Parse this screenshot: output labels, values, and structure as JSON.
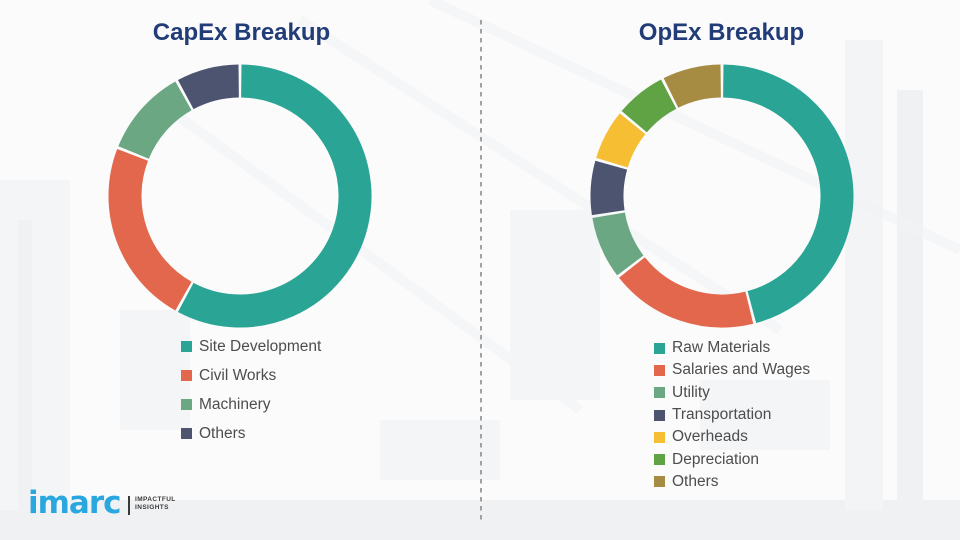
{
  "chart_data": [
    {
      "type": "donut",
      "title": "CapEx Breakup",
      "labels": [
        "Site Development",
        "Civil Works",
        "Machinery",
        "Others"
      ],
      "values": [
        58,
        23,
        11,
        8
      ],
      "colors": [
        "#2AA494",
        "#E2674C",
        "#6BA783",
        "#4D5470"
      ],
      "legend_position": "below"
    },
    {
      "type": "donut",
      "title": "OpEx Breakup",
      "labels": [
        "Raw Materials",
        "Salaries and Wages",
        "Utility",
        "Transportation",
        "Overheads",
        "Depreciation",
        "Others"
      ],
      "values": [
        46,
        18.5,
        8,
        7,
        6.5,
        6.5,
        7.5
      ],
      "colors": [
        "#2AA494",
        "#E2674C",
        "#6BA783",
        "#4D5470",
        "#F5BE33",
        "#5FA344",
        "#A68B42"
      ],
      "legend_position": "below"
    }
  ],
  "style": {
    "title_color": "#223C78",
    "legend_text_color": "#4D4D4D",
    "divider_color": "#8c8c8c",
    "background_color": "#fbfbfc"
  },
  "logo": {
    "brand": "imarc",
    "tagline_line1": "IMPACTFUL",
    "tagline_line2": "INSIGHTS",
    "brand_color": "#2AA7DF",
    "text_color": "#3A3A3A"
  }
}
